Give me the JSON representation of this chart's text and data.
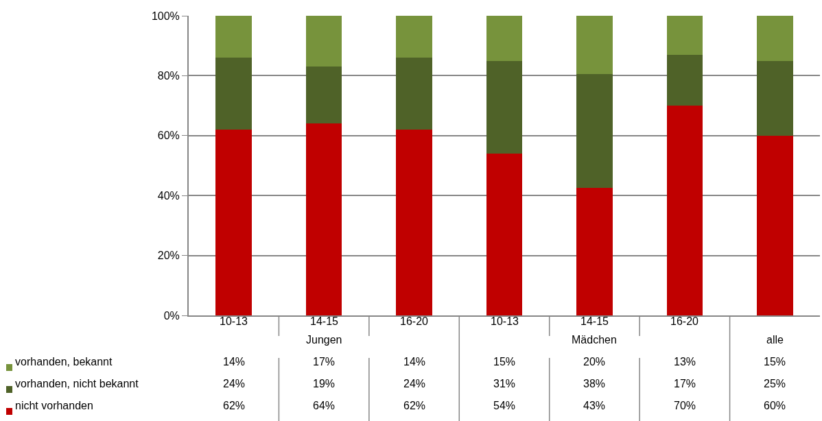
{
  "chart_data": {
    "type": "bar",
    "stacked": true,
    "categories": [
      "10-13",
      "14-15",
      "16-20",
      "10-13",
      "14-15",
      "16-20",
      "alle"
    ],
    "annotations": [
      "Jungen",
      "Mädchen"
    ],
    "series": [
      {
        "name": "nicht vorhanden",
        "color": "#c00000",
        "values": [
          62,
          64,
          62,
          54,
          42.5,
          70,
          60
        ],
        "value_labels": [
          "62%",
          "64%",
          "62%",
          "54%",
          "43%",
          "70%",
          "60%"
        ]
      },
      {
        "name": "vorhanden, nicht bekannt",
        "color": "#4f6228",
        "values": [
          24,
          19,
          24,
          31,
          38,
          17,
          25
        ],
        "value_labels": [
          "24%",
          "19%",
          "24%",
          "31%",
          "38%",
          "17%",
          "25%"
        ]
      },
      {
        "name": "vorhanden, bekannt",
        "color": "#77933c",
        "values": [
          14,
          17,
          14,
          15,
          19.5,
          13,
          15
        ],
        "value_labels": [
          "14%",
          "17%",
          "14%",
          "15%",
          "20%",
          "13%",
          "15%"
        ]
      }
    ],
    "ylim": [
      0,
      100
    ],
    "yticks": [
      {
        "value": 0,
        "label": "0%"
      },
      {
        "value": 20,
        "label": "20%"
      },
      {
        "value": 40,
        "label": "40%"
      },
      {
        "value": 60,
        "label": "60%"
      },
      {
        "value": 80,
        "label": "80%"
      },
      {
        "value": 100,
        "label": "100%"
      }
    ],
    "grid": "y",
    "legend": "bottom"
  }
}
